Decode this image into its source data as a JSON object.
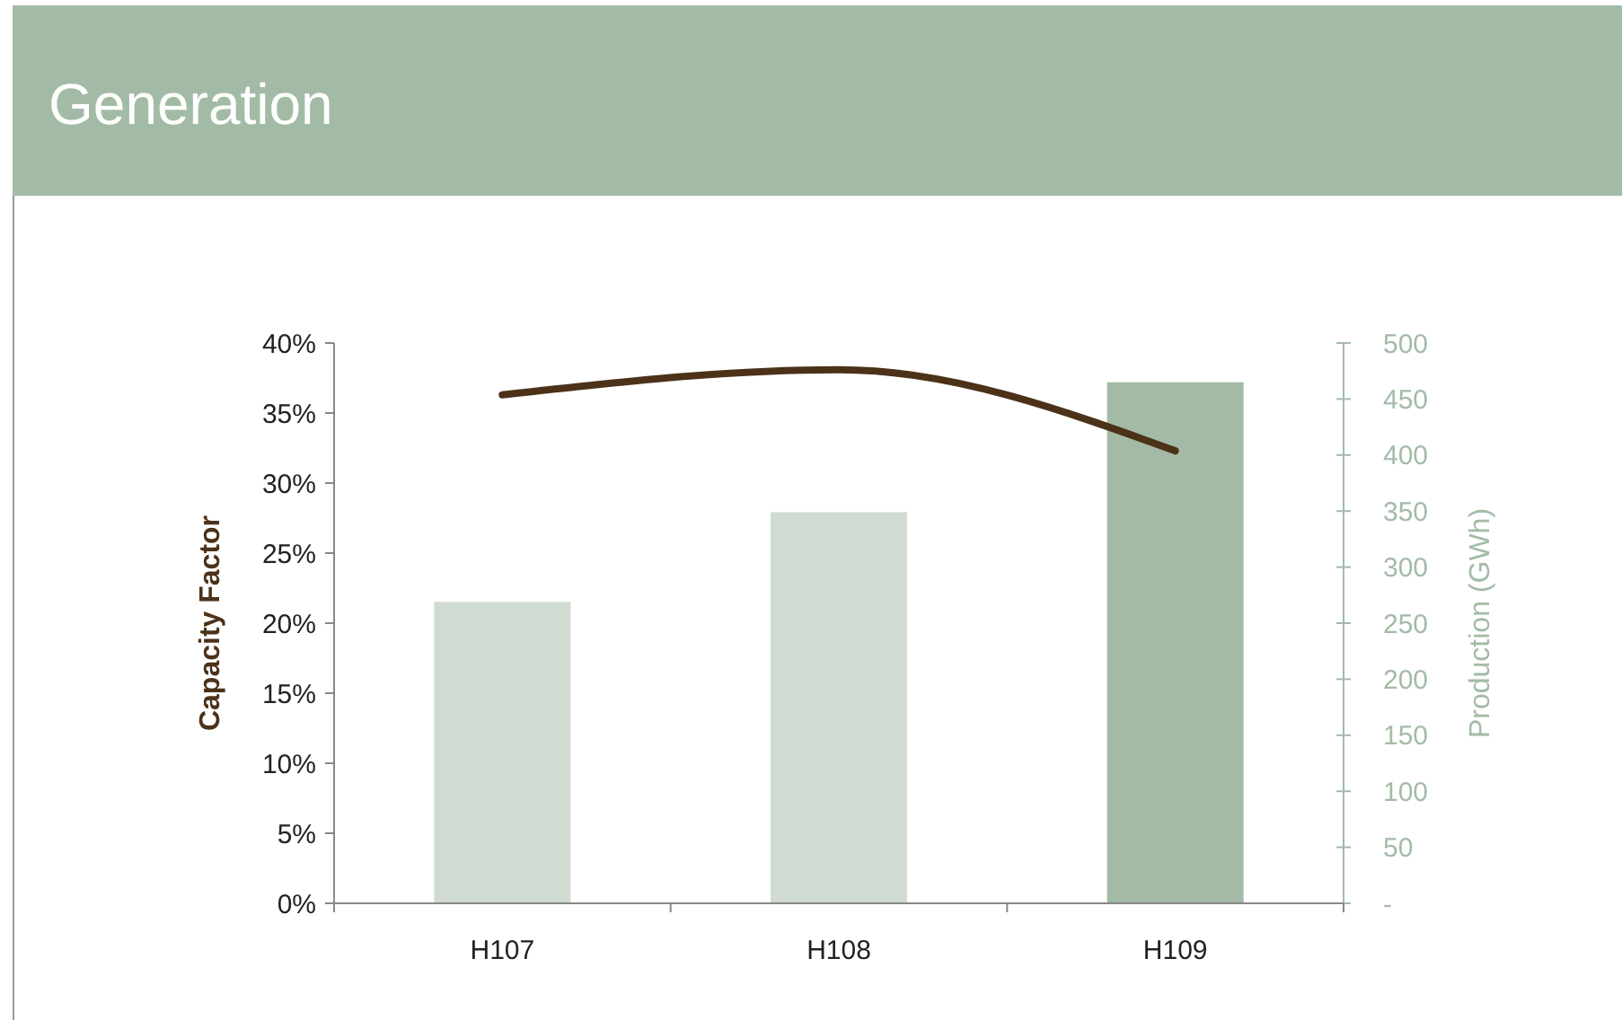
{
  "chart_data": {
    "type": "bar",
    "title": "Generation",
    "categories": [
      "H107",
      "H108",
      "H109"
    ],
    "ylabel": "Capacity Factor",
    "y2label": "Production (GWh)",
    "series": [
      {
        "axis": "y2",
        "colors": [
          "#d0dbd2",
          "#d0dbd2",
          "#a3bba6"
        ],
        "values": [
          269,
          349,
          465
        ]
      },
      {
        "type": "line",
        "axis": "y",
        "color": "#4b3219",
        "values": [
          36.3,
          38.1,
          32.3
        ]
      }
    ],
    "ylim": [
      0,
      40
    ],
    "yticks": [
      {
        "value": 0,
        "label": "0%"
      },
      {
        "value": 5,
        "label": "5%"
      },
      {
        "value": 10,
        "label": "10%"
      },
      {
        "value": 15,
        "label": "15%"
      },
      {
        "value": 20,
        "label": "20%"
      },
      {
        "value": 25,
        "label": "25%"
      },
      {
        "value": 30,
        "label": "30%"
      },
      {
        "value": 35,
        "label": "35%"
      },
      {
        "value": 40,
        "label": "40%"
      }
    ],
    "y2lim": [
      0,
      500
    ],
    "y2ticks": [
      {
        "value": 0,
        "label": "-"
      },
      50,
      100,
      150,
      200,
      250,
      300,
      350,
      400,
      450,
      500
    ],
    "marker": "none",
    "line_style": "solid",
    "grid": false
  }
}
